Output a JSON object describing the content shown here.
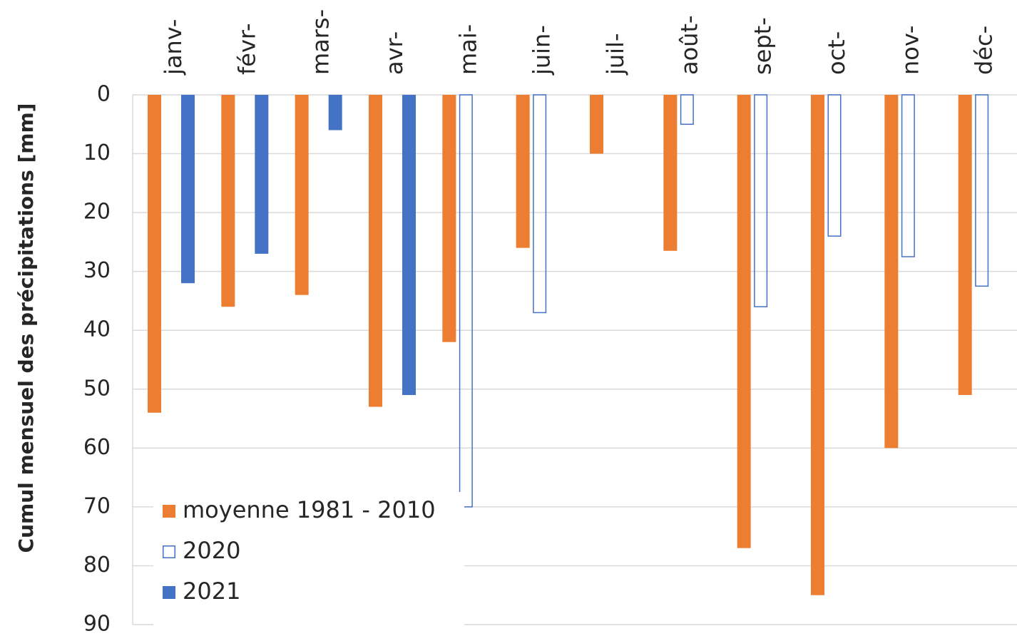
{
  "chart_data": {
    "type": "bar",
    "y_axis_label": "Cumul mensuel des précipitations [mm]",
    "categories": [
      "janv-",
      "févr-",
      "mars-",
      "avr-",
      "mai-",
      "juin-",
      "juil-",
      "août-",
      "sept-",
      "oct-",
      "nov-",
      "déc-"
    ],
    "series": [
      {
        "name": "moyenne 1981 - 2010",
        "color": "#ed7d31",
        "filled": true,
        "values": [
          54,
          36,
          34,
          53,
          42,
          26,
          10,
          26.5,
          77,
          85,
          60,
          51
        ]
      },
      {
        "name": "2020",
        "color": "#4472c4",
        "filled": false,
        "values": [
          null,
          null,
          null,
          null,
          70,
          37,
          null,
          5,
          36,
          24,
          27.5,
          32.5
        ]
      },
      {
        "name": "2021",
        "color": "#4472c4",
        "filled": true,
        "values": [
          32,
          27,
          6,
          51,
          null,
          null,
          null,
          null,
          null,
          null,
          null,
          null
        ]
      }
    ],
    "ylim": [
      0,
      90
    ],
    "yticks": [
      0,
      10,
      20,
      30,
      40,
      50,
      60,
      70,
      80,
      90
    ],
    "y_reversed": true,
    "grid": true,
    "legend_position": "bottom-left"
  }
}
